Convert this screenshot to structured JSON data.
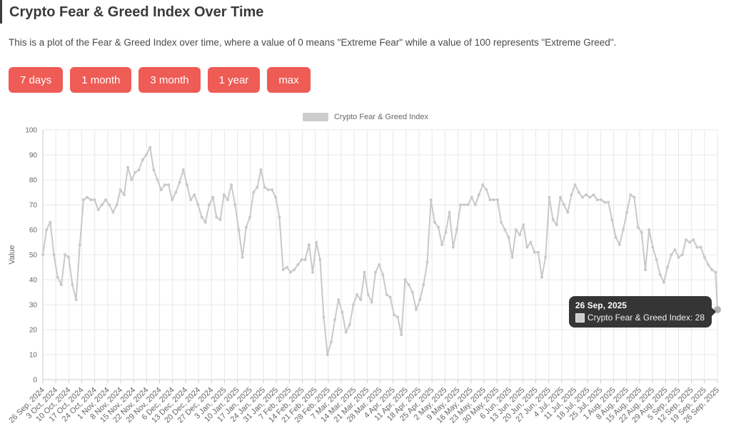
{
  "header": {
    "title": "Crypto Fear & Greed Index Over Time",
    "description": "This is a plot of the Fear & Greed Index over time, where a value of 0 means \"Extreme Fear\" while a value of 100 represents \"Extreme Greed\"."
  },
  "range_buttons": [
    "7 days",
    "1 month",
    "3 month",
    "1 year",
    "max"
  ],
  "colors": {
    "button": "#ee5c55",
    "line": "#c9c9c9",
    "grid": "#e8e8e8",
    "axis": "#cccccc",
    "tooltip_bg": "#2a2a2a"
  },
  "legend": {
    "label": "Crypto Fear & Greed Index",
    "symbol_color": "#cccccc"
  },
  "tooltip": {
    "date": "26 Sep, 2025",
    "text": "Crypto Fear & Greed Index: 28",
    "value": 28,
    "symbol_color": "#cccccc"
  },
  "chart_data": {
    "type": "line",
    "series_name": "Crypto Fear & Greed Index",
    "ylabel": "Value",
    "ylim": [
      0,
      100
    ],
    "ytick_step": 10,
    "grid": true,
    "legend_position": "top-center",
    "x_start_date": "26 Sep, 2024",
    "x_end_date": "26 Sep, 2025",
    "x_tick_labels": [
      "26 Sep, 2024",
      "3 Oct, 2024",
      "10 Oct, 2024",
      "17 Oct, 2024",
      "24 Oct, 2024",
      "1 Nov, 2024",
      "8 Nov, 2024",
      "15 Nov, 2024",
      "22 Nov, 2024",
      "29 Nov, 2024",
      "6 Dec, 2024",
      "13 Dec, 2024",
      "20 Dec, 2024",
      "27 Dec, 2024",
      "3 Jan, 2025",
      "10 Jan, 2025",
      "17 Jan, 2025",
      "24 Jan, 2025",
      "31 Jan, 2025",
      "7 Feb, 2025",
      "14 Feb, 2025",
      "21 Feb, 2025",
      "28 Feb, 2025",
      "7 Mar, 2025",
      "14 Mar, 2025",
      "21 Mar, 2025",
      "28 Mar, 2025",
      "4 Apr, 2025",
      "11 Apr, 2025",
      "18 Apr, 2025",
      "25 Apr, 2025",
      "2 May, 2025",
      "9 May, 2025",
      "16 May, 2025",
      "23 May, 2025",
      "30 May, 2025",
      "6 Jun, 2025",
      "13 Jun, 2025",
      "20 Jun, 2025",
      "27 Jun, 2025",
      "4 Jul, 2025",
      "11 Jul, 2025",
      "18 Jul, 2025",
      "25 Jul, 2025",
      "1 Aug, 2025",
      "8 Aug, 2025",
      "15 Aug, 2025",
      "22 Aug, 2025",
      "29 Aug, 2025",
      "5 Sep, 2025",
      "12 Sep, 2025",
      "19 Sep, 2025",
      "26 Sep, 2025"
    ],
    "sample_interval_days": 2,
    "total_days": 365,
    "values": [
      50,
      60,
      63,
      50,
      41,
      38,
      50,
      49,
      38,
      32,
      54,
      72,
      73,
      72,
      72,
      68,
      70,
      72,
      70,
      67,
      70,
      76,
      74,
      85,
      80,
      83,
      84,
      88,
      90,
      93,
      84,
      80,
      76,
      78,
      78,
      72,
      75,
      79,
      84,
      78,
      72,
      74,
      70,
      65,
      63,
      70,
      73,
      65,
      64,
      74,
      72,
      78,
      70,
      60,
      49,
      61,
      65,
      75,
      77,
      84,
      77,
      76,
      76,
      73,
      65,
      44,
      45,
      43,
      44,
      46,
      48,
      48,
      54,
      43,
      55,
      48,
      25,
      10,
      15,
      24,
      32,
      27,
      19,
      22,
      30,
      34,
      32,
      43,
      34,
      31,
      43,
      46,
      42,
      34,
      33,
      26,
      25,
      18,
      40,
      38,
      35,
      28,
      32,
      38,
      47,
      72,
      63,
      61,
      54,
      59,
      67,
      53,
      60,
      70,
      70,
      70,
      73,
      70,
      74,
      78,
      76,
      72,
      72,
      72,
      63,
      60,
      57,
      49,
      60,
      58,
      62,
      53,
      55,
      51,
      51,
      41,
      49,
      73,
      64,
      62,
      73,
      70,
      67,
      74,
      78,
      75,
      73,
      74,
      73,
      74,
      72,
      72,
      71,
      71,
      64,
      57,
      54,
      60,
      67,
      74,
      73,
      61,
      59,
      44,
      60,
      53,
      48,
      42,
      39,
      45,
      50,
      52,
      49,
      50,
      56,
      55,
      56,
      53,
      53,
      49,
      46,
      44,
      43,
      28
    ],
    "last_point": {
      "date": "26 Sep, 2025",
      "value": 28
    }
  }
}
